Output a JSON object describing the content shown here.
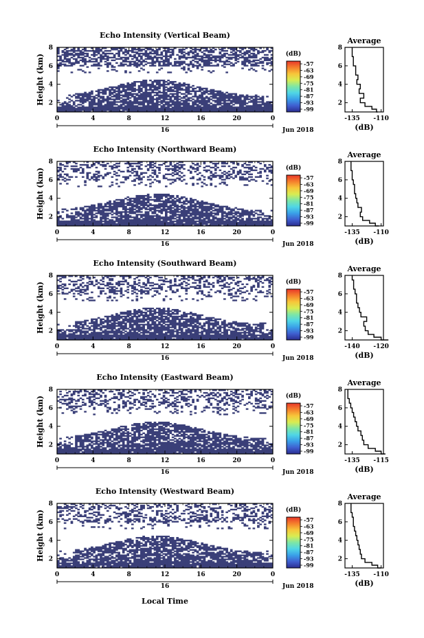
{
  "chart_data": [
    {
      "type": "heatmap",
      "title": "Echo Intensity (Vertical Beam)",
      "ylabel": "Height (km)",
      "x_ticks": [
        "0",
        "4",
        "8",
        "12",
        "16",
        "20",
        "0"
      ],
      "y_ticks": [
        "2",
        "4",
        "6",
        "8"
      ],
      "date_label": "16",
      "month_label": "Jun 2018",
      "xlim": [
        0,
        24
      ],
      "ylim": [
        1,
        8
      ],
      "colorbar": {
        "unit": "(dB)",
        "ticks": [
          "-57",
          "-63",
          "-69",
          "-75",
          "-81",
          "-87",
          "-93",
          "-99"
        ]
      },
      "profile": {
        "title": "Average",
        "xlabel": "(dB)",
        "x_ticks": [
          "-135",
          "-110"
        ],
        "y_ticks": [
          "2",
          "4",
          "6",
          "8"
        ],
        "height_km": [
          1.0,
          1.3,
          1.6,
          2.0,
          2.5,
          3.0,
          3.5,
          4.0,
          4.5,
          5.0,
          5.5,
          6.0,
          6.5,
          7.0,
          7.5,
          8.0
        ],
        "dB": [
          -113,
          -114,
          -118,
          -124,
          -128,
          -125,
          -129,
          -128,
          -131,
          -130,
          -132,
          -132,
          -134,
          -134,
          -135,
          -135
        ]
      }
    },
    {
      "type": "heatmap",
      "title": "Echo Intensity (Northward Beam)",
      "ylabel": "Height (km)",
      "x_ticks": [
        "0",
        "4",
        "8",
        "12",
        "16",
        "20",
        "0"
      ],
      "y_ticks": [
        "2",
        "4",
        "6",
        "8"
      ],
      "date_label": "16",
      "month_label": "Jun 2018",
      "xlim": [
        0,
        24
      ],
      "ylim": [
        1,
        8
      ],
      "colorbar": {
        "unit": "(dB)",
        "ticks": [
          "-57",
          "-63",
          "-69",
          "-75",
          "-81",
          "-87",
          "-93",
          "-99"
        ]
      },
      "profile": {
        "title": "Average",
        "xlabel": "(dB)",
        "x_ticks": [
          "-135",
          "-110"
        ],
        "y_ticks": [
          "2",
          "4",
          "6",
          "8"
        ],
        "height_km": [
          1.0,
          1.3,
          1.6,
          2.0,
          2.5,
          3.0,
          3.5,
          4.0,
          4.5,
          5.0,
          5.5,
          6.0,
          6.5,
          7.0,
          7.5,
          8.0
        ],
        "dB": [
          -112,
          -115,
          -120,
          -126,
          -128,
          -127,
          -130,
          -131,
          -132,
          -133,
          -133,
          -134,
          -135,
          -135,
          -136,
          -136
        ]
      }
    },
    {
      "type": "heatmap",
      "title": "Echo Intensity (Southward Beam)",
      "ylabel": "Height (km)",
      "x_ticks": [
        "0",
        "4",
        "8",
        "12",
        "16",
        "20",
        "0"
      ],
      "y_ticks": [
        "2",
        "4",
        "6",
        "8"
      ],
      "date_label": "16",
      "month_label": "Jun 2018",
      "xlim": [
        0,
        24
      ],
      "ylim": [
        1,
        8
      ],
      "colorbar": {
        "unit": "(dB)",
        "ticks": [
          "-57",
          "-63",
          "-69",
          "-75",
          "-81",
          "-87",
          "-93",
          "-99"
        ]
      },
      "profile": {
        "title": "Average",
        "xlabel": "(dB)",
        "x_ticks": [
          "-140",
          "-120"
        ],
        "y_ticks": [
          "2",
          "4",
          "6",
          "8"
        ],
        "height_km": [
          1.0,
          1.3,
          1.6,
          2.0,
          2.5,
          3.0,
          3.5,
          4.0,
          4.5,
          5.0,
          5.5,
          6.0,
          6.5,
          7.0,
          7.5,
          8.0
        ],
        "dB": [
          -115,
          -120,
          -125,
          -129,
          -131,
          -132,
          -130,
          -134,
          -135,
          -136,
          -137,
          -137,
          -138,
          -139,
          -139,
          -140
        ]
      }
    },
    {
      "type": "heatmap",
      "title": "Echo Intensity (Eastward Beam)",
      "ylabel": "Height (km)",
      "x_ticks": [
        "0",
        "4",
        "8",
        "12",
        "16",
        "20",
        "0"
      ],
      "y_ticks": [
        "2",
        "4",
        "6",
        "8"
      ],
      "date_label": "16",
      "month_label": "Jun 2018",
      "xlim": [
        0,
        24
      ],
      "ylim": [
        1,
        8
      ],
      "colorbar": {
        "unit": "(dB)",
        "ticks": [
          "-57",
          "-63",
          "-69",
          "-75",
          "-81",
          "-87",
          "-93",
          "-99"
        ]
      },
      "profile": {
        "title": "Average",
        "xlabel": "(dB)",
        "x_ticks": [
          "-135",
          "-115"
        ],
        "y_ticks": [
          "2",
          "4",
          "6",
          "8"
        ],
        "height_km": [
          1.0,
          1.3,
          1.6,
          2.0,
          2.5,
          3.0,
          3.5,
          4.0,
          4.5,
          5.0,
          5.5,
          6.0,
          6.5,
          7.0,
          7.5,
          8.0
        ],
        "dB": [
          -112,
          -115,
          -119,
          -124,
          -127,
          -128,
          -129,
          -131,
          -132,
          -133,
          -134,
          -135,
          -136,
          -137,
          -138,
          -138
        ]
      }
    },
    {
      "type": "heatmap",
      "title": "Echo Intensity (Westward Beam)",
      "ylabel": "Height (km)",
      "x_ticks": [
        "0",
        "4",
        "8",
        "12",
        "16",
        "20",
        "0"
      ],
      "y_ticks": [
        "2",
        "4",
        "6",
        "8"
      ],
      "date_label": "16",
      "month_label": "Jun 2018",
      "xlim": [
        0,
        24
      ],
      "ylim": [
        1,
        8
      ],
      "colorbar": {
        "unit": "(dB)",
        "ticks": [
          "-57",
          "-63",
          "-69",
          "-75",
          "-81",
          "-87",
          "-93",
          "-99"
        ]
      },
      "profile": {
        "title": "Average",
        "xlabel": "(dB)",
        "x_ticks": [
          "-135",
          "-110"
        ],
        "y_ticks": [
          "2",
          "4",
          "6",
          "8"
        ],
        "height_km": [
          1.0,
          1.3,
          1.6,
          2.0,
          2.5,
          3.0,
          3.5,
          4.0,
          4.5,
          5.0,
          5.5,
          6.0,
          6.5,
          7.0,
          7.5,
          8.0
        ],
        "dB": [
          -110,
          -113,
          -118,
          -124,
          -127,
          -128,
          -129,
          -130,
          -131,
          -132,
          -133,
          -134,
          -134,
          -135,
          -136,
          -136
        ]
      }
    }
  ],
  "xlabel": "Local Time",
  "colors": {
    "echo": "#3a3f78",
    "colorbar": [
      "#2b2d8f",
      "#3f5fd0",
      "#3aa0e8",
      "#4fd6e6",
      "#7ee6a6",
      "#d8ec52",
      "#f7c63a",
      "#f57f2c",
      "#e8372a"
    ]
  }
}
